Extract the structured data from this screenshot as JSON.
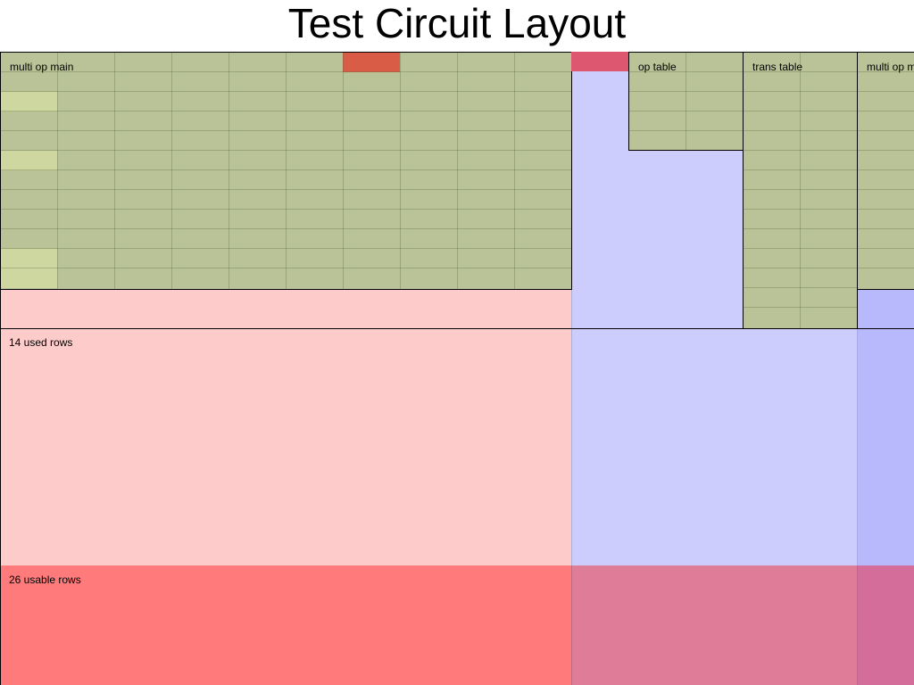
{
  "title": "Test Circuit Layout",
  "labels": {
    "used_rows": "14 used rows",
    "usable_rows": "26 usable rows"
  },
  "regions": {
    "multi_op_main": {
      "label": "multi op main",
      "columns": 10,
      "rows": 12
    },
    "op_table": {
      "label": "op table",
      "columns": 2,
      "rows": 5
    },
    "trans_table": {
      "label": "trans table",
      "columns": 2,
      "rows": 14
    },
    "multi_op_right": {
      "label": "multi op m",
      "columns": 1,
      "rows": 12
    }
  },
  "colors": {
    "chip_green": "#bac397",
    "chip_light": "#cfd7a0",
    "highlight_orange": "#d95c47",
    "highlight_red": "#dc576f",
    "used_pink": "#fccbca",
    "unusable_red": "#ff7b7b",
    "advice_lavender": "#cccdfc",
    "advice_blue": "#b8b8fc",
    "overlap_mauve": "#df7c98",
    "overlap_magenta": "#d56d9b"
  }
}
